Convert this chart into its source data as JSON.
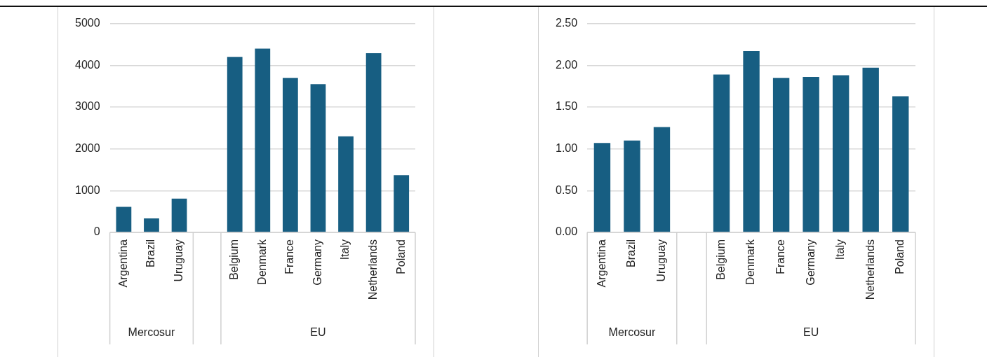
{
  "chart_data": [
    {
      "type": "bar",
      "categories": [
        "Argentina",
        "Brazil",
        "Uruguay",
        null,
        "Belgium",
        "Denmark",
        "France",
        "Germany",
        "Italy",
        "Netherlands",
        "Poland"
      ],
      "values": [
        610,
        335,
        810,
        null,
        4200,
        4400,
        3700,
        3550,
        2300,
        4290,
        1370
      ],
      "color": "#175e82",
      "ylim": [
        0,
        5000
      ],
      "yticks": [
        0,
        1000,
        2000,
        3000,
        4000,
        5000
      ],
      "grid": "y",
      "legend": false,
      "annotations": [
        "Mercosur",
        "EU"
      ]
    },
    {
      "type": "bar",
      "categories": [
        "Argentina",
        "Brazil",
        "Uruguay",
        null,
        "Belgium",
        "Denmark",
        "France",
        "Germany",
        "Italy",
        "Netherlands",
        "Poland"
      ],
      "values": [
        1.07,
        1.1,
        1.26,
        null,
        1.89,
        2.17,
        1.85,
        1.86,
        1.88,
        1.97,
        1.63
      ],
      "color": "#175e82",
      "ylim": [
        0,
        2.5
      ],
      "yticks": [
        {
          "value": 0,
          "label": "0.00"
        },
        {
          "value": 0.5,
          "label": "0.50"
        },
        {
          "value": 1,
          "label": "1.00"
        },
        {
          "value": 1.5,
          "label": "1.50"
        },
        {
          "value": 2,
          "label": "2.00"
        },
        {
          "value": 2.5,
          "label": "2.50"
        }
      ],
      "grid": "y",
      "legend": false,
      "annotations": [
        "Mercosur",
        "EU"
      ]
    }
  ]
}
